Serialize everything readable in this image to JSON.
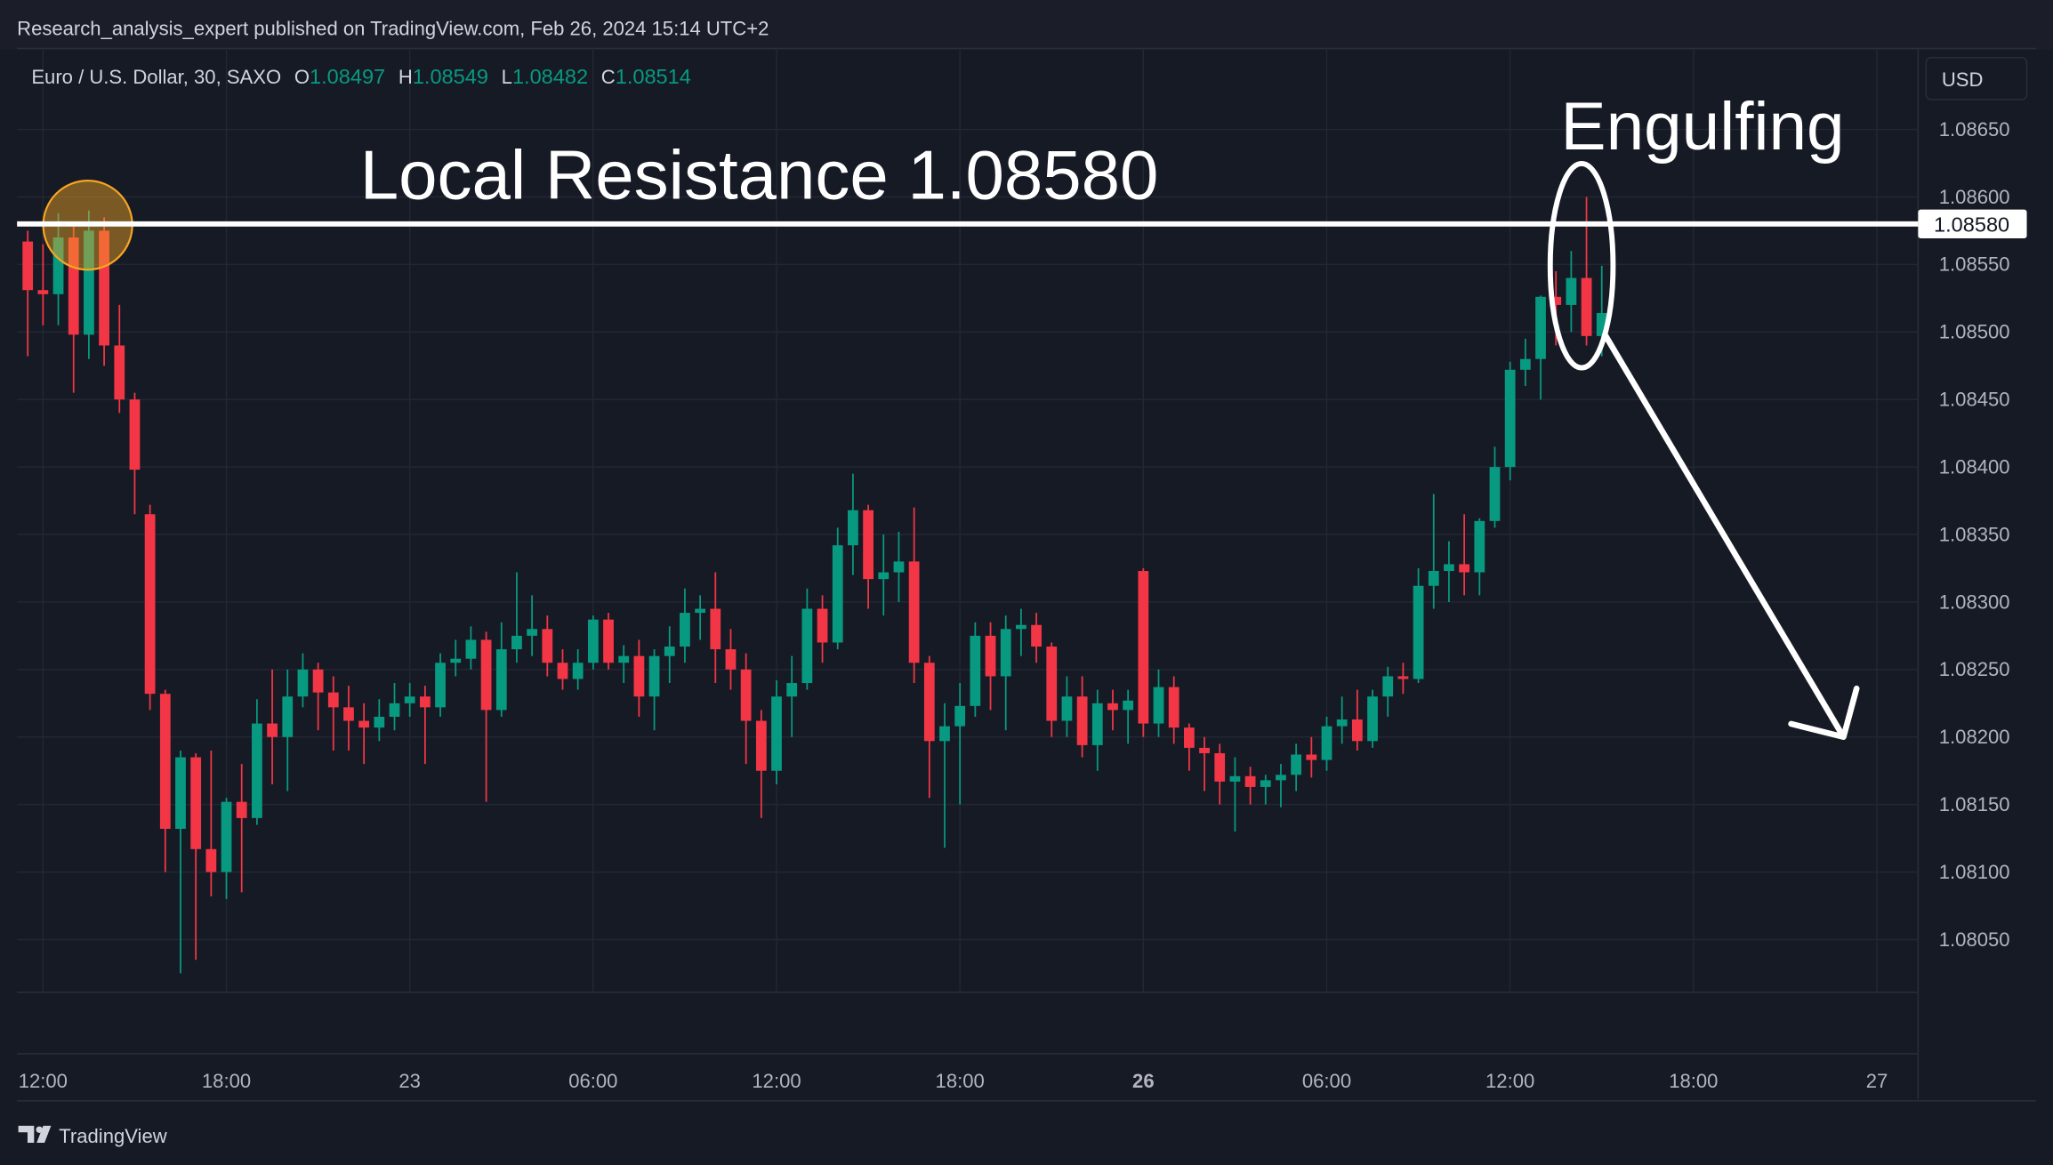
{
  "header": {
    "text": "Research_analysis_expert published on TradingView.com, Feb 26, 2024 15:14 UTC+2"
  },
  "footer": {
    "brand": "TradingView"
  },
  "chart_data": {
    "type": "candlestick",
    "symbol": "Euro / U.S. Dollar, 30, SAXO",
    "ohlc_labels": [
      "O",
      "H",
      "L",
      "C"
    ],
    "currency": "USD",
    "up_color": "#089981",
    "down_color": "#f23645",
    "annotations": [
      {
        "text": "Local Resistance 1.08580"
      },
      {
        "text": "Engulfing"
      }
    ],
    "resistance": {
      "value": 1.0858,
      "label": "1.08580"
    },
    "xlim": [
      -1.7,
      122.7
    ],
    "ylim": [
      1.08011,
      1.0871
    ],
    "grid": true,
    "xticks": [
      {
        "value": 0,
        "label": "12:00"
      },
      {
        "value": 12,
        "label": "18:00"
      },
      {
        "value": 24,
        "label": "23"
      },
      {
        "value": 36,
        "label": "06:00"
      },
      {
        "value": 48,
        "label": "12:00"
      },
      {
        "value": 60,
        "label": "18:00"
      },
      {
        "value": 72,
        "label": "26",
        "bold": true
      },
      {
        "value": 84,
        "label": "06:00"
      },
      {
        "value": 96,
        "label": "12:00"
      },
      {
        "value": 108,
        "label": "18:00"
      },
      {
        "value": 120,
        "label": "27"
      }
    ],
    "yticks": [
      {
        "value": 1.0805,
        "label": "1.08050"
      },
      {
        "value": 1.081,
        "label": "1.08100"
      },
      {
        "value": 1.0815,
        "label": "1.08150"
      },
      {
        "value": 1.082,
        "label": "1.08200"
      },
      {
        "value": 1.0825,
        "label": "1.08250"
      },
      {
        "value": 1.083,
        "label": "1.08300"
      },
      {
        "value": 1.0835,
        "label": "1.08350"
      },
      {
        "value": 1.084,
        "label": "1.08400"
      },
      {
        "value": 1.0845,
        "label": "1.08450"
      },
      {
        "value": 1.085,
        "label": "1.08500"
      },
      {
        "value": 1.0855,
        "label": "1.08550"
      },
      {
        "value": 1.086,
        "label": "1.08600"
      },
      {
        "value": 1.0865,
        "label": "1.08650"
      }
    ],
    "x": [
      -1,
      0,
      1,
      2,
      3,
      4,
      5,
      6,
      7,
      8,
      9,
      10,
      11,
      12,
      13,
      14,
      15,
      16,
      17,
      18,
      19,
      20,
      21,
      22,
      23,
      24,
      25,
      26,
      27,
      28,
      29,
      30,
      31,
      32,
      33,
      34,
      35,
      36,
      37,
      38,
      39,
      40,
      41,
      42,
      43,
      44,
      45,
      46,
      47,
      48,
      49,
      50,
      51,
      52,
      53,
      54,
      55,
      56,
      57,
      58,
      59,
      60,
      61,
      62,
      63,
      64,
      65,
      66,
      67,
      68,
      69,
      70,
      71,
      72,
      73,
      74,
      75,
      76,
      77,
      78,
      79,
      80,
      81,
      82,
      83,
      84,
      85,
      86,
      87,
      88,
      89,
      90,
      91,
      92,
      93,
      94,
      95,
      96,
      97,
      98,
      99,
      100,
      101,
      102
    ],
    "ohlc": [
      [
        1.08567,
        1.08575,
        1.08482,
        1.08531
      ],
      [
        1.08531,
        1.08565,
        1.08505,
        1.08528
      ],
      [
        1.08528,
        1.08588,
        1.08505,
        1.0857
      ],
      [
        1.0857,
        1.08578,
        1.08455,
        1.08498
      ],
      [
        1.08498,
        1.0859,
        1.0848,
        1.08575
      ],
      [
        1.08575,
        1.08585,
        1.08475,
        1.0849
      ],
      [
        1.0849,
        1.0852,
        1.0844,
        1.0845
      ],
      [
        1.0845,
        1.08455,
        1.08365,
        1.08398
      ],
      [
        1.08365,
        1.08372,
        1.0822,
        1.08232
      ],
      [
        1.08232,
        1.08235,
        1.081,
        1.08132
      ],
      [
        1.08132,
        1.0819,
        1.08025,
        1.08185
      ],
      [
        1.08185,
        1.08188,
        1.08035,
        1.08117
      ],
      [
        1.08117,
        1.0819,
        1.08082,
        1.081
      ],
      [
        1.081,
        1.08155,
        1.0808,
        1.08152
      ],
      [
        1.08152,
        1.0818,
        1.08085,
        1.0814
      ],
      [
        1.0814,
        1.08228,
        1.08135,
        1.0821
      ],
      [
        1.0821,
        1.0825,
        1.08165,
        1.082
      ],
      [
        1.082,
        1.0825,
        1.0816,
        1.0823
      ],
      [
        1.0823,
        1.08262,
        1.08222,
        1.0825
      ],
      [
        1.0825,
        1.08255,
        1.08205,
        1.08233
      ],
      [
        1.08233,
        1.08245,
        1.0819,
        1.08222
      ],
      [
        1.08222,
        1.08238,
        1.0819,
        1.08212
      ],
      [
        1.08212,
        1.08225,
        1.0818,
        1.08207
      ],
      [
        1.08207,
        1.08228,
        1.08197,
        1.08215
      ],
      [
        1.08215,
        1.0824,
        1.08205,
        1.08225
      ],
      [
        1.08225,
        1.0824,
        1.08215,
        1.0823
      ],
      [
        1.0823,
        1.08238,
        1.0818,
        1.08222
      ],
      [
        1.08222,
        1.08262,
        1.08215,
        1.08255
      ],
      [
        1.08255,
        1.08272,
        1.08245,
        1.08258
      ],
      [
        1.08258,
        1.08282,
        1.0825,
        1.08272
      ],
      [
        1.08272,
        1.08278,
        1.08152,
        1.0822
      ],
      [
        1.0822,
        1.08285,
        1.08215,
        1.08265
      ],
      [
        1.08265,
        1.08322,
        1.08255,
        1.08275
      ],
      [
        1.08275,
        1.08305,
        1.0826,
        1.0828
      ],
      [
        1.0828,
        1.0829,
        1.08245,
        1.08255
      ],
      [
        1.08255,
        1.08265,
        1.08235,
        1.08243
      ],
      [
        1.08243,
        1.08265,
        1.08235,
        1.08255
      ],
      [
        1.08255,
        1.0829,
        1.0825,
        1.08287
      ],
      [
        1.08287,
        1.08292,
        1.0825,
        1.08255
      ],
      [
        1.08255,
        1.08268,
        1.0824,
        1.0826
      ],
      [
        1.0826,
        1.08272,
        1.08215,
        1.0823
      ],
      [
        1.0823,
        1.08265,
        1.08205,
        1.0826
      ],
      [
        1.0826,
        1.08282,
        1.0824,
        1.08267
      ],
      [
        1.08267,
        1.0831,
        1.08255,
        1.08292
      ],
      [
        1.08292,
        1.08305,
        1.08272,
        1.08295
      ],
      [
        1.08295,
        1.08322,
        1.0824,
        1.08265
      ],
      [
        1.08265,
        1.0828,
        1.08235,
        1.0825
      ],
      [
        1.0825,
        1.08262,
        1.0818,
        1.08212
      ],
      [
        1.08212,
        1.0822,
        1.0814,
        1.08175
      ],
      [
        1.08175,
        1.08242,
        1.08165,
        1.0823
      ],
      [
        1.0823,
        1.0826,
        1.082,
        1.0824
      ],
      [
        1.0824,
        1.0831,
        1.08235,
        1.08295
      ],
      [
        1.08295,
        1.08305,
        1.08255,
        1.0827
      ],
      [
        1.0827,
        1.08355,
        1.08265,
        1.08342
      ],
      [
        1.08342,
        1.08395,
        1.0832,
        1.08368
      ],
      [
        1.08368,
        1.08372,
        1.08295,
        1.08317
      ],
      [
        1.08317,
        1.0835,
        1.0829,
        1.08322
      ],
      [
        1.08322,
        1.08352,
        1.083,
        1.0833
      ],
      [
        1.0833,
        1.0837,
        1.0824,
        1.08255
      ],
      [
        1.08255,
        1.0826,
        1.08155,
        1.08197
      ],
      [
        1.08197,
        1.08225,
        1.08118,
        1.08208
      ],
      [
        1.08208,
        1.0824,
        1.0815,
        1.08223
      ],
      [
        1.08223,
        1.08285,
        1.08215,
        1.08275
      ],
      [
        1.08275,
        1.08285,
        1.0822,
        1.08245
      ],
      [
        1.08245,
        1.0829,
        1.08205,
        1.0828
      ],
      [
        1.0828,
        1.08295,
        1.0826,
        1.08283
      ],
      [
        1.08283,
        1.08292,
        1.08255,
        1.08267
      ],
      [
        1.08267,
        1.0827,
        1.082,
        1.08212
      ],
      [
        1.08212,
        1.08245,
        1.082,
        1.0823
      ],
      [
        1.0823,
        1.08245,
        1.08185,
        1.08194
      ],
      [
        1.08194,
        1.08235,
        1.08175,
        1.08225
      ],
      [
        1.08225,
        1.08235,
        1.08205,
        1.0822
      ],
      [
        1.0822,
        1.08235,
        1.08195,
        1.08227
      ],
      [
        1.08323,
        1.08325,
        1.082,
        1.0821
      ],
      [
        1.0821,
        1.0825,
        1.082,
        1.08237
      ],
      [
        1.08237,
        1.08245,
        1.08195,
        1.08207
      ],
      [
        1.08207,
        1.0821,
        1.08175,
        1.08192
      ],
      [
        1.08192,
        1.082,
        1.0816,
        1.08188
      ],
      [
        1.08188,
        1.08195,
        1.0815,
        1.08167
      ],
      [
        1.08167,
        1.08185,
        1.0813,
        1.08171
      ],
      [
        1.08171,
        1.08178,
        1.0815,
        1.08163
      ],
      [
        1.08163,
        1.08172,
        1.0815,
        1.08168
      ],
      [
        1.08168,
        1.0818,
        1.08148,
        1.08172
      ],
      [
        1.08172,
        1.08195,
        1.0816,
        1.08187
      ],
      [
        1.08187,
        1.082,
        1.0817,
        1.08183
      ],
      [
        1.08183,
        1.08215,
        1.08175,
        1.08208
      ],
      [
        1.08208,
        1.0823,
        1.08195,
        1.08213
      ],
      [
        1.08213,
        1.08235,
        1.0819,
        1.08197
      ],
      [
        1.08197,
        1.08235,
        1.08192,
        1.0823
      ],
      [
        1.0823,
        1.08252,
        1.08215,
        1.08245
      ],
      [
        1.08245,
        1.08255,
        1.08232,
        1.08243
      ],
      [
        1.08243,
        1.08325,
        1.0824,
        1.08312
      ],
      [
        1.08312,
        1.0838,
        1.08295,
        1.08323
      ],
      [
        1.08323,
        1.08345,
        1.083,
        1.08328
      ],
      [
        1.08328,
        1.08365,
        1.08305,
        1.08322
      ],
      [
        1.08322,
        1.08362,
        1.08305,
        1.0836
      ],
      [
        1.0836,
        1.08415,
        1.08355,
        1.084
      ],
      [
        1.084,
        1.08478,
        1.0839,
        1.08472
      ],
      [
        1.08472,
        1.08495,
        1.0846,
        1.0848
      ],
      [
        1.0848,
        1.08527,
        1.0845,
        1.08526
      ],
      [
        1.08526,
        1.08545,
        1.0849,
        1.0852
      ],
      [
        1.0852,
        1.0856,
        1.085,
        1.0854
      ],
      [
        1.0854,
        1.086,
        1.0849,
        1.08497
      ],
      [
        1.08497,
        1.08549,
        1.08482,
        1.08514
      ]
    ]
  }
}
